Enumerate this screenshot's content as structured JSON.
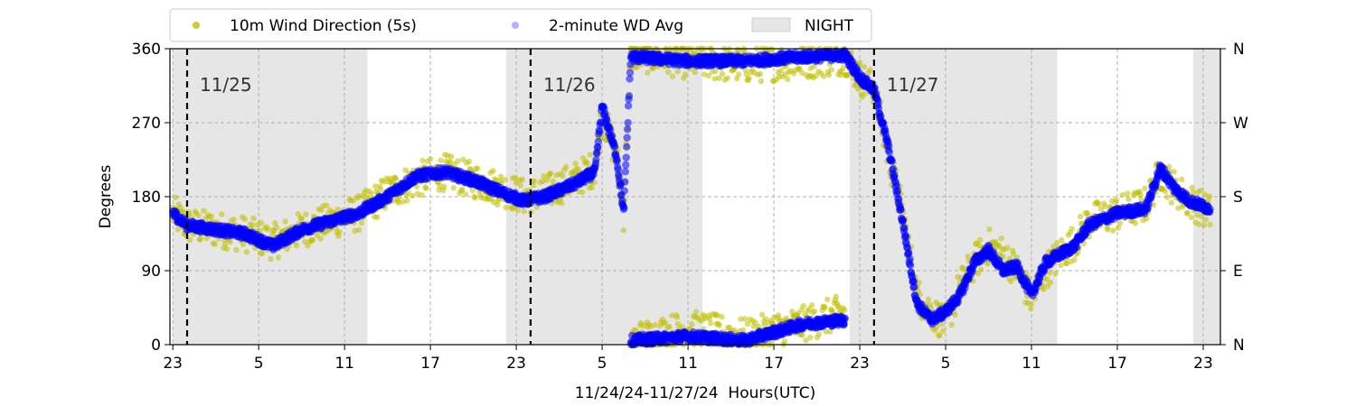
{
  "chart_data": {
    "type": "scatter",
    "title": "",
    "xlabel": "11/24/24-11/27/24  Hours(UTC)",
    "ylabel": "Degrees",
    "ylim": [
      0,
      360
    ],
    "xlim_hours": [
      -0.2,
      73.2
    ],
    "x_tick_labels": [
      "23",
      "5",
      "11",
      "17",
      "23",
      "5",
      "11",
      "17",
      "23",
      "5",
      "11",
      "17",
      "23"
    ],
    "x_tick_hours_since_start": [
      0,
      6,
      12,
      18,
      24,
      30,
      36,
      42,
      48,
      54,
      60,
      66,
      72
    ],
    "y_ticks": [
      0,
      90,
      180,
      270,
      360
    ],
    "y2_tick_labels": [
      "N",
      "E",
      "S",
      "W",
      "N"
    ],
    "grid": true,
    "legend_position": "top",
    "legend": [
      {
        "label": "10m Wind Direction (5s)",
        "color": "#bfbf00",
        "marker": "dot"
      },
      {
        "label": "2-minute WD Avg",
        "color": "#0000ff",
        "marker": "dot"
      },
      {
        "label": "NIGHT",
        "color": "#e6e6e6",
        "marker": "patch"
      }
    ],
    "night_periods_hours": [
      [
        0,
        13.6
      ],
      [
        23.3,
        37.0
      ],
      [
        47.3,
        61.8
      ],
      [
        71.3,
        73.2
      ]
    ],
    "day_markers": [
      {
        "label": "11/25",
        "hour": 1
      },
      {
        "label": "11/26",
        "hour": 25
      },
      {
        "label": "11/27",
        "hour": 49
      }
    ],
    "series": [
      {
        "name": "10m Wind Direction (5s)",
        "color": "#bfbf00",
        "spread_deg": 22,
        "points": [
          [
            0,
            160
          ],
          [
            1,
            145
          ],
          [
            3,
            140
          ],
          [
            5,
            135
          ],
          [
            7,
            125
          ],
          [
            9,
            140
          ],
          [
            11,
            150
          ],
          [
            13,
            160
          ],
          [
            15,
            185
          ],
          [
            17,
            200
          ],
          [
            19,
            210
          ],
          [
            21,
            200
          ],
          [
            23,
            190
          ],
          [
            24.5,
            180
          ],
          [
            26,
            185
          ],
          [
            28,
            200
          ],
          [
            29.5,
            215
          ],
          [
            30,
            280
          ],
          [
            31,
            230
          ],
          [
            31.5,
            160
          ],
          [
            32,
            355
          ],
          [
            36,
            345
          ],
          [
            40,
            340
          ],
          [
            44,
            345
          ],
          [
            47,
            350
          ],
          [
            48,
            325
          ],
          [
            49,
            310
          ],
          [
            50,
            230
          ],
          [
            51,
            160
          ],
          [
            52,
            60
          ],
          [
            53,
            40
          ],
          [
            54,
            25
          ],
          [
            55,
            70
          ],
          [
            56,
            100
          ],
          [
            57,
            120
          ],
          [
            58,
            110
          ],
          [
            59,
            90
          ],
          [
            60,
            55
          ],
          [
            61,
            90
          ],
          [
            62,
            110
          ],
          [
            63,
            125
          ],
          [
            64,
            150
          ],
          [
            66,
            160
          ],
          [
            68,
            170
          ],
          [
            69,
            210
          ],
          [
            70,
            190
          ],
          [
            71,
            175
          ],
          [
            72.5,
            160
          ]
        ],
        "wrap_low_points": [
          [
            32,
            5
          ],
          [
            36,
            20
          ],
          [
            40,
            10
          ],
          [
            44,
            25
          ],
          [
            47,
            40
          ]
        ]
      },
      {
        "name": "2-minute WD Avg",
        "color": "#0000ff",
        "points": [
          [
            0,
            160
          ],
          [
            1,
            145
          ],
          [
            3,
            140
          ],
          [
            5,
            135
          ],
          [
            7,
            120
          ],
          [
            9,
            140
          ],
          [
            11,
            150
          ],
          [
            13,
            160
          ],
          [
            15,
            180
          ],
          [
            17,
            205
          ],
          [
            19,
            210
          ],
          [
            21,
            200
          ],
          [
            23,
            185
          ],
          [
            24.5,
            175
          ],
          [
            26,
            180
          ],
          [
            28,
            195
          ],
          [
            29.5,
            210
          ],
          [
            30,
            290
          ],
          [
            31,
            230
          ],
          [
            31.5,
            160
          ],
          [
            32,
            350
          ],
          [
            36,
            345
          ],
          [
            40,
            345
          ],
          [
            44,
            350
          ],
          [
            47,
            352
          ],
          [
            48,
            325
          ],
          [
            49,
            310
          ],
          [
            50,
            240
          ],
          [
            51,
            150
          ],
          [
            52,
            50
          ],
          [
            53,
            30
          ],
          [
            54,
            40
          ],
          [
            55,
            60
          ],
          [
            56,
            100
          ],
          [
            57,
            115
          ],
          [
            58,
            90
          ],
          [
            59,
            95
          ],
          [
            60,
            60
          ],
          [
            61,
            100
          ],
          [
            62,
            110
          ],
          [
            63,
            120
          ],
          [
            64,
            145
          ],
          [
            66,
            160
          ],
          [
            68,
            165
          ],
          [
            69,
            215
          ],
          [
            70,
            190
          ],
          [
            71,
            175
          ],
          [
            72.5,
            165
          ]
        ],
        "wrap_low_points": [
          [
            32,
            5
          ],
          [
            36,
            10
          ],
          [
            40,
            5
          ],
          [
            44,
            25
          ],
          [
            47,
            30
          ]
        ]
      }
    ]
  }
}
